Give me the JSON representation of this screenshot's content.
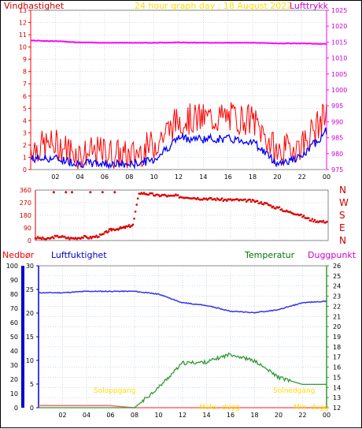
{
  "panel1": {
    "title": "24 hour graph day : 18 August 2022",
    "left_label": "Vindhastighet",
    "right_label": "Lufttrykk",
    "y_left": {
      "range": [
        0,
        13
      ],
      "ticks": [
        0,
        1,
        2,
        3,
        4,
        5,
        6,
        7,
        8,
        9,
        10,
        11,
        12,
        13
      ]
    },
    "y_right": {
      "range": [
        975,
        1025
      ],
      "ticks": [
        975,
        980,
        985,
        990,
        995,
        1000,
        1005,
        1010,
        1015,
        1020,
        1025
      ]
    },
    "x_ticks": [
      "02",
      "04",
      "06",
      "08",
      "10",
      "12",
      "14",
      "16",
      "18",
      "20",
      "22",
      "00"
    ],
    "colors": {
      "gust": "#ff0000",
      "wind": "#0000ff",
      "pressure": "#ff00ff",
      "grid": "#9cb4d4",
      "title": "#ffdd00",
      "axis_left": "#ff0000",
      "axis_right": "#ff00ff"
    }
  },
  "panel2": {
    "y_ticks": [
      "0",
      "90",
      "180",
      "270",
      "360"
    ],
    "dir_labels": [
      "N",
      "W",
      "S",
      "E",
      "N"
    ],
    "colors": {
      "dir": "#dd0000",
      "labels": "#cc0000"
    }
  },
  "panel3": {
    "labels": {
      "rain": "Nedbør",
      "humidity": "Luftfuktighet",
      "temperature": "Temperatur",
      "dewpoint": "Duggpunkt",
      "sunrise": "Soloppgang",
      "sunset": "Solnedgang",
      "max_dew": "Maks. dugg",
      "min_dew": "Min. dugg"
    },
    "y_rain_ticks": [
      "0",
      "10",
      "20",
      "30",
      "40",
      "50",
      "60",
      "70",
      "80",
      "90",
      "100"
    ],
    "y_hum_ticks": [
      "0",
      "5",
      "10",
      "15",
      "20",
      "25",
      "30"
    ],
    "y_temp_ticks": [
      "12",
      "13",
      "14",
      "15",
      "16",
      "17",
      "18",
      "19",
      "20",
      "21",
      "22",
      "23",
      "24",
      "25",
      "26"
    ],
    "x_ticks": [
      "02",
      "04",
      "06",
      "08",
      "10",
      "12",
      "14",
      "16",
      "18",
      "20",
      "22",
      "00"
    ],
    "colors": {
      "rain_bar": "#0000cc",
      "humidity": "#3333ee",
      "temperature": "#339933",
      "dew": "#ff6666",
      "grid": "#9cb4d4",
      "rain_label": "#ff0000",
      "hum_label": "#0000cc",
      "temp_label": "#007700",
      "dew_label": "#cc00cc",
      "sun_label": "#ffdd00"
    }
  },
  "chart_data": [
    {
      "type": "line",
      "title": "24 hour graph day : 18 August 2022",
      "xlabel": "",
      "ylabel": "Vindhastighet",
      "y2label": "Lufttrykk",
      "x": [
        "00",
        "02",
        "04",
        "06",
        "08",
        "10",
        "12",
        "14",
        "16",
        "18",
        "20",
        "22",
        "00"
      ],
      "ylim": [
        0,
        13
      ],
      "y2lim": [
        975,
        1025
      ],
      "series": [
        {
          "name": "Vindhastighet (gust)",
          "axis": "left",
          "values": [
            1.5,
            1.8,
            1.0,
            1.2,
            0.8,
            1.8,
            3.8,
            3.9,
            4.0,
            3.8,
            1.1,
            1.8,
            4.2
          ]
        },
        {
          "name": "Vindhastighet (average)",
          "axis": "left",
          "values": [
            0.9,
            0.9,
            0.5,
            0.5,
            0.4,
            0.8,
            2.6,
            2.5,
            2.5,
            2.3,
            0.5,
            1.0,
            3.2
          ]
        },
        {
          "name": "Lufttrykk",
          "axis": "right",
          "values": [
            1015.5,
            1015.3,
            1014.9,
            1014.8,
            1014.8,
            1014.8,
            1014.9,
            1014.8,
            1014.8,
            1014.8,
            1014.6,
            1014.6,
            1014.4
          ]
        }
      ]
    },
    {
      "type": "scatter",
      "title": "",
      "ylabel": "",
      "ylim": [
        0,
        360
      ],
      "series": [
        {
          "name": "",
          "x": [
            0.0,
            0.5,
            1.0,
            1.5,
            2.0,
            2.5,
            3.0,
            3.5,
            4.0,
            4.5,
            5.0,
            5.5,
            6.0,
            6.3,
            6.8,
            7.2,
            7.6,
            8.0,
            8.5,
            9.0,
            9.5,
            10.0,
            10.5,
            11.0,
            11.5,
            12.0,
            12.5,
            13.0,
            13.5,
            14.0,
            14.5,
            15.0,
            15.5,
            16.0,
            16.5,
            17.0,
            17.5,
            18.0,
            18.5,
            19.0,
            19.5,
            20.0,
            20.5,
            21.0,
            21.5,
            22.0,
            22.5,
            23.0,
            23.5,
            24.0
          ],
          "y": [
            20,
            15,
            10,
            25,
            30,
            20,
            15,
            20,
            25,
            20,
            30,
            40,
            70,
            80,
            85,
            90,
            100,
            110,
            340,
            335,
            330,
            320,
            325,
            315,
            320,
            310,
            310,
            305,
            300,
            300,
            295,
            295,
            290,
            290,
            290,
            285,
            285,
            280,
            270,
            260,
            240,
            230,
            210,
            200,
            190,
            170,
            150,
            140,
            135,
            135
          ]
        }
      ]
    },
    {
      "type": "line",
      "title": "",
      "ylabel": "Nedbør / Luftfuktighet",
      "y2label": "Temperatur / Duggpunkt",
      "x": [
        "00",
        "02",
        "04",
        "06",
        "08",
        "10",
        "12",
        "14",
        "16",
        "18",
        "20",
        "22",
        "00"
      ],
      "ylim": [
        0,
        100
      ],
      "y2lim": [
        12,
        26
      ],
      "series": [
        {
          "name": "Luftfuktighet",
          "axis": "left",
          "values": [
            81,
            81,
            82,
            82,
            82,
            80,
            74,
            72,
            68,
            67,
            69,
            74,
            75
          ]
        },
        {
          "name": "Temperatur",
          "axis": "right",
          "values": [
            12.0,
            12.0,
            12.0,
            12.0,
            12.0,
            14.0,
            16.4,
            16.5,
            17.3,
            16.6,
            15.0,
            14.3,
            14.3
          ]
        },
        {
          "name": "Duggpunkt",
          "axis": "right",
          "values": [
            12.2,
            12.2,
            12.2,
            12.2,
            12.0,
            12.0,
            12.0,
            12.0,
            12.0,
            12.0,
            12.0,
            12.0,
            12.0
          ]
        }
      ]
    }
  ]
}
